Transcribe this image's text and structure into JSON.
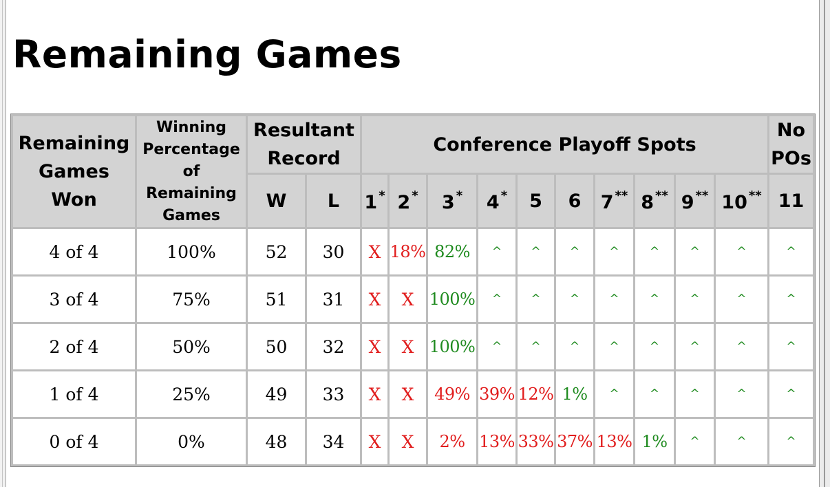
{
  "title": "Remaining Games",
  "headers": {
    "remaining_games_won": [
      "Remaining",
      "Games",
      "Won"
    ],
    "winning_percentage": [
      "Winning",
      "Percentage",
      "of",
      "Remaining",
      "Games"
    ],
    "resultant_record": [
      "Resultant",
      "Record"
    ],
    "conference_playoff_spots": "Conference Playoff Spots",
    "no_pos": [
      "No",
      "POs"
    ],
    "w": "W",
    "l": "L",
    "spots": [
      {
        "num": "1",
        "mark": "*"
      },
      {
        "num": "2",
        "mark": "*"
      },
      {
        "num": "3",
        "mark": "*"
      },
      {
        "num": "4",
        "mark": "*"
      },
      {
        "num": "5",
        "mark": ""
      },
      {
        "num": "6",
        "mark": ""
      },
      {
        "num": "7",
        "mark": "**"
      },
      {
        "num": "8",
        "mark": "**"
      },
      {
        "num": "9",
        "mark": "**"
      },
      {
        "num": "10",
        "mark": "**"
      },
      {
        "num": "11",
        "mark": ""
      }
    ]
  },
  "rows": [
    {
      "won": "4 of 4",
      "pct": "100%",
      "w": "52",
      "l": "30",
      "spots": [
        "X",
        "18%",
        "82%",
        "^",
        "^",
        "^",
        "^",
        "^",
        "^",
        "^",
        "^"
      ],
      "colors": [
        "red",
        "red",
        "green",
        "caret",
        "caret",
        "caret",
        "caret",
        "caret",
        "caret",
        "caret",
        "caret"
      ]
    },
    {
      "won": "3 of 4",
      "pct": "75%",
      "w": "51",
      "l": "31",
      "spots": [
        "X",
        "X",
        "100%",
        "^",
        "^",
        "^",
        "^",
        "^",
        "^",
        "^",
        "^"
      ],
      "colors": [
        "red",
        "red",
        "green",
        "caret",
        "caret",
        "caret",
        "caret",
        "caret",
        "caret",
        "caret",
        "caret"
      ]
    },
    {
      "won": "2 of 4",
      "pct": "50%",
      "w": "50",
      "l": "32",
      "spots": [
        "X",
        "X",
        "100%",
        "^",
        "^",
        "^",
        "^",
        "^",
        "^",
        "^",
        "^"
      ],
      "colors": [
        "red",
        "red",
        "green",
        "caret",
        "caret",
        "caret",
        "caret",
        "caret",
        "caret",
        "caret",
        "caret"
      ]
    },
    {
      "won": "1 of 4",
      "pct": "25%",
      "w": "49",
      "l": "33",
      "spots": [
        "X",
        "X",
        "49%",
        "39%",
        "12%",
        "1%",
        "^",
        "^",
        "^",
        "^",
        "^"
      ],
      "colors": [
        "red",
        "red",
        "red",
        "red",
        "red",
        "green",
        "caret",
        "caret",
        "caret",
        "caret",
        "caret"
      ]
    },
    {
      "won": "0 of 4",
      "pct": "0%",
      "w": "48",
      "l": "34",
      "spots": [
        "X",
        "X",
        "2%",
        "13%",
        "33%",
        "37%",
        "13%",
        "1%",
        "^",
        "^",
        "^"
      ],
      "colors": [
        "red",
        "red",
        "red",
        "red",
        "red",
        "red",
        "red",
        "green",
        "caret",
        "caret",
        "caret"
      ]
    }
  ],
  "colors": {
    "eliminated": "#e11d1d",
    "clinched": "#1e8a1e",
    "header_bg": "#d3d3d3",
    "grid": "#bdbdbd"
  }
}
